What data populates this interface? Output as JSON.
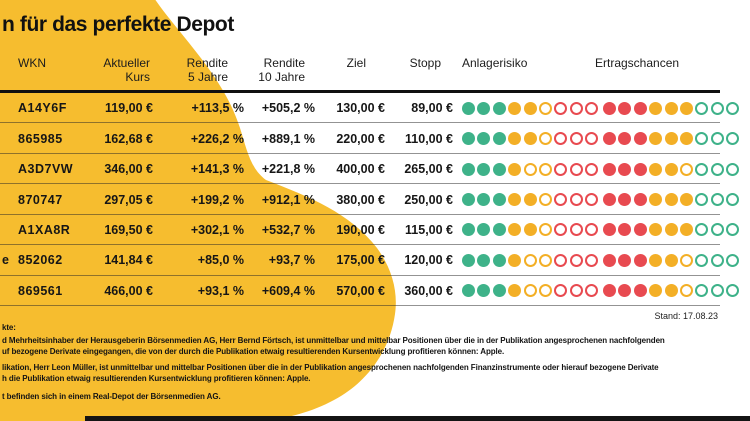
{
  "title": "n für das perfekte Depot",
  "stand_label": "Stand: 17.08.23",
  "colors": {
    "brand_yellow": "#F6BD2F",
    "dot_green": "#3EB289",
    "dot_yellow": "#F3AF26",
    "dot_red": "#E84A50",
    "footer_bar_black": "#141414"
  },
  "chart_data": {
    "type": "table",
    "columns": [
      "WKN",
      "Aktueller Kurs",
      "Rendite 5 Jahre",
      "Rendite 10 Jahre",
      "Ziel",
      "Stopp",
      "Anlagerisiko",
      "Ertragschancen"
    ],
    "headers": [
      {
        "l1": "WKN",
        "l2": ""
      },
      {
        "l1": "Aktueller",
        "l2": "Kurs"
      },
      {
        "l1": "Rendite",
        "l2": "5 Jahre"
      },
      {
        "l1": "Rendite",
        "l2": "10 Jahre"
      },
      {
        "l1": "Ziel",
        "l2": ""
      },
      {
        "l1": "Stopp",
        "l2": ""
      },
      {
        "l1": "Anlagerisiko",
        "l2": ""
      },
      {
        "l1": "Ertragschancen",
        "l2": ""
      }
    ],
    "rating_scale_max": 9,
    "rows": [
      {
        "prefix": "",
        "wkn": "A14Y6F",
        "kurs": "119,00 €",
        "rendite5": "+113,5 %",
        "rendite10": "+505,2 %",
        "ziel": "130,00 €",
        "stopp": "89,00 €",
        "anlagerisiko": 5,
        "ertragschancen": 6
      },
      {
        "prefix": "",
        "wkn": "865985",
        "kurs": "162,68 €",
        "rendite5": "+226,2 %",
        "rendite10": "+889,1 %",
        "ziel": "220,00 €",
        "stopp": "110,00 €",
        "anlagerisiko": 5,
        "ertragschancen": 6
      },
      {
        "prefix": "",
        "wkn": "A3D7VW",
        "kurs": "346,00 €",
        "rendite5": "+141,3 %",
        "rendite10": "+221,8 %",
        "ziel": "400,00 €",
        "stopp": "265,00 €",
        "anlagerisiko": 4,
        "ertragschancen": 5
      },
      {
        "prefix": "",
        "wkn": "870747",
        "kurs": "297,05 €",
        "rendite5": "+199,2 %",
        "rendite10": "+912,1 %",
        "ziel": "380,00 €",
        "stopp": "250,00 €",
        "anlagerisiko": 5,
        "ertragschancen": 6
      },
      {
        "prefix": "",
        "wkn": "A1XA8R",
        "kurs": "169,50 €",
        "rendite5": "+302,1 %",
        "rendite10": "+532,7 %",
        "ziel": "190,00 €",
        "stopp": "115,00 €",
        "anlagerisiko": 5,
        "ertragschancen": 6
      },
      {
        "prefix": "e",
        "wkn": "852062",
        "kurs": "141,84 €",
        "rendite5": "+85,0 %",
        "rendite10": "+93,7 %",
        "ziel": "175,00 €",
        "stopp": "120,00 €",
        "anlagerisiko": 4,
        "ertragschancen": 5
      },
      {
        "prefix": "",
        "wkn": "869561",
        "kurs": "466,00 €",
        "rendite5": "+93,1 %",
        "rendite10": "+609,4 %",
        "ziel": "570,00 €",
        "stopp": "360,00 €",
        "anlagerisiko": 4,
        "ertragschancen": 5
      }
    ]
  },
  "footnotes": [
    "kte:",
    "d Mehrheitsinhaber der Herausgeberin Börsenmedien AG, Herr Bernd Förtsch, ist unmittelbar und mittelbar Positionen über die in der Publikation angesprochenen nachfolgenden",
    "uf bezogene Derivate eingegangen, die von der durch die Publikation etwaig resultierenden Kursentwicklung profitieren können: Apple.",
    "likation, Herr Leon Müller, ist unmittelbar und mittelbar Positionen über die in der Publikation angesprochenen nachfolgenden Finanzinstrumente oder hierauf bezogene Derivate",
    "h die Publikation etwaig resultierenden Kursentwicklung profitieren können: Apple.",
    "t befinden sich in einem Real-Depot der Börsenmedien AG."
  ]
}
